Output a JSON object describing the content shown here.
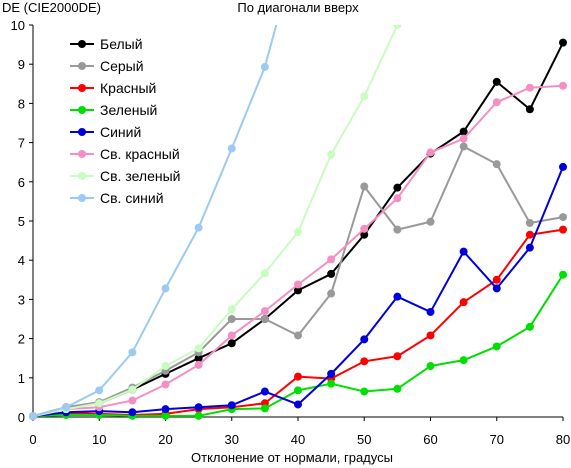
{
  "chart_data": {
    "type": "line",
    "title": "По диагонали вверх",
    "ylabel": "DE (CIE2000DE)",
    "xlabel": "Отклонение от нормали, градусы",
    "xlim": [
      0,
      80
    ],
    "ylim": [
      0,
      10
    ],
    "xticks": [
      0,
      10,
      20,
      30,
      40,
      50,
      60,
      70,
      80
    ],
    "yticks": [
      0,
      1,
      2,
      3,
      4,
      5,
      6,
      7,
      8,
      9,
      10
    ],
    "grid": false,
    "legend_position": "top-left",
    "series": [
      {
        "name": "Белый",
        "color": "#000000",
        "x": [
          0,
          5,
          10,
          15,
          20,
          25,
          30,
          35,
          40,
          45,
          50,
          55,
          60,
          65,
          70,
          75,
          80
        ],
        "y": [
          0.02,
          0.25,
          0.35,
          0.7,
          1.1,
          1.5,
          1.88,
          2.5,
          3.23,
          3.65,
          4.65,
          5.85,
          6.72,
          7.28,
          8.55,
          7.85,
          9.55
        ]
      },
      {
        "name": "Серый",
        "color": "#999999",
        "x": [
          0,
          5,
          10,
          15,
          20,
          25,
          30,
          35,
          40,
          45,
          50,
          55,
          60,
          65,
          70,
          75,
          80
        ],
        "y": [
          0.02,
          0.25,
          0.38,
          0.75,
          1.18,
          1.65,
          2.5,
          2.5,
          2.08,
          3.15,
          5.88,
          4.78,
          4.98,
          6.9,
          6.45,
          4.95,
          5.1
        ]
      },
      {
        "name": "Красный",
        "color": "#ff0000",
        "x": [
          0,
          5,
          10,
          15,
          20,
          25,
          30,
          35,
          40,
          45,
          50,
          55,
          60,
          65,
          70,
          75,
          80
        ],
        "y": [
          0.02,
          0.1,
          0.08,
          0.05,
          0.08,
          0.2,
          0.25,
          0.35,
          1.03,
          0.98,
          1.42,
          1.55,
          2.08,
          2.93,
          3.5,
          4.65,
          4.78
        ]
      },
      {
        "name": "Зеленый",
        "color": "#00e000",
        "x": [
          0,
          5,
          10,
          15,
          20,
          25,
          30,
          35,
          40,
          45,
          50,
          55,
          60,
          65,
          70,
          75,
          80
        ],
        "y": [
          0.02,
          0.05,
          0.05,
          0.03,
          0.03,
          0.03,
          0.2,
          0.22,
          0.68,
          0.85,
          0.65,
          0.72,
          1.3,
          1.45,
          1.8,
          2.3,
          3.63
        ]
      },
      {
        "name": "Синий",
        "color": "#0000dd",
        "x": [
          0,
          5,
          10,
          15,
          20,
          25,
          30,
          35,
          40,
          45,
          50,
          55,
          60,
          65,
          70,
          75,
          80
        ],
        "y": [
          0.02,
          0.12,
          0.15,
          0.12,
          0.2,
          0.25,
          0.3,
          0.65,
          0.32,
          1.1,
          1.98,
          3.07,
          2.68,
          4.22,
          3.28,
          4.32,
          6.38
        ]
      },
      {
        "name": "Св. красный",
        "color": "#f48fc4",
        "x": [
          0,
          5,
          10,
          15,
          20,
          25,
          30,
          35,
          40,
          45,
          50,
          55,
          60,
          65,
          70,
          75,
          80
        ],
        "y": [
          0.02,
          0.2,
          0.25,
          0.42,
          0.83,
          1.33,
          2.08,
          2.7,
          3.38,
          4.02,
          4.8,
          5.58,
          6.75,
          7.1,
          8.03,
          8.4,
          8.45
        ]
      },
      {
        "name": "Св. зеленый",
        "color": "#c8fcc0",
        "x": [
          0,
          5,
          10,
          15,
          20,
          25,
          30,
          35,
          40,
          45,
          50,
          55
        ],
        "y": [
          0.02,
          0.2,
          0.35,
          0.7,
          1.3,
          1.75,
          2.75,
          3.67,
          4.72,
          6.7,
          8.18,
          10.0
        ]
      },
      {
        "name": "Св. синий",
        "color": "#9ccaf2",
        "x": [
          0,
          5,
          10,
          15,
          20,
          25,
          30,
          35,
          37.2
        ],
        "y": [
          0.02,
          0.25,
          0.68,
          1.65,
          3.28,
          4.83,
          6.85,
          8.93,
          10.3
        ]
      }
    ]
  }
}
